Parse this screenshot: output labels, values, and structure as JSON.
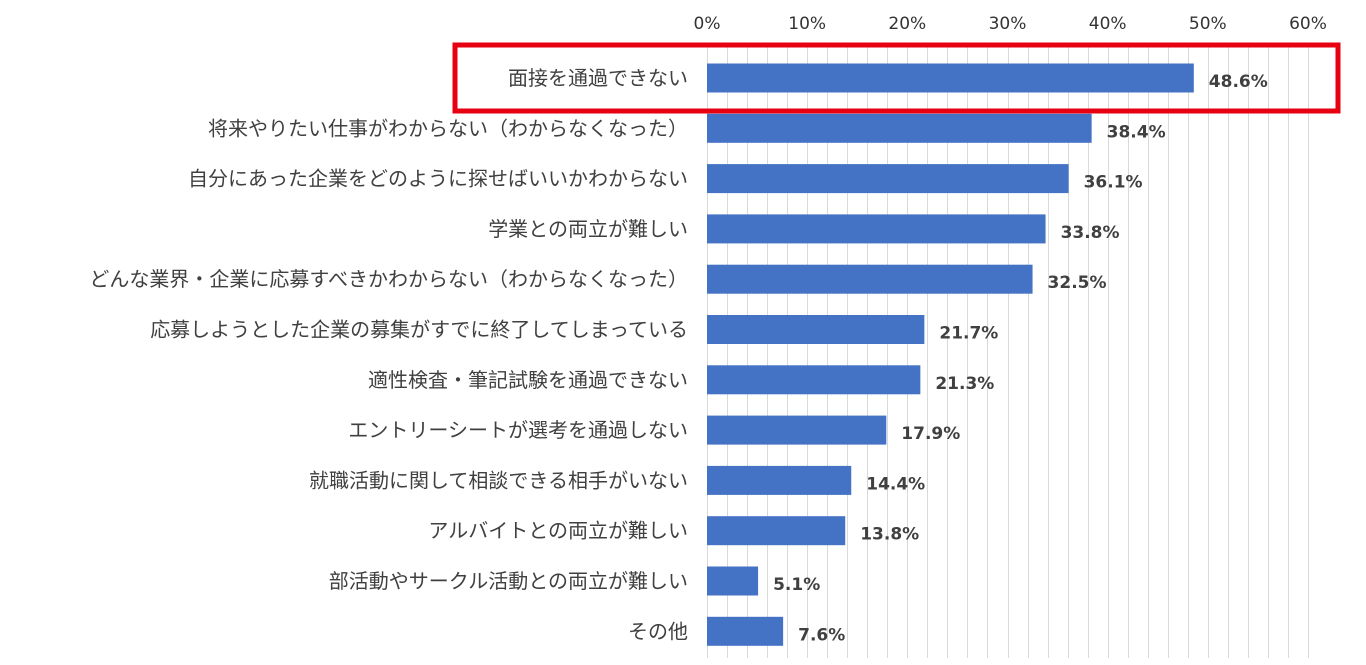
{
  "chart_data": {
    "type": "bar",
    "orientation": "horizontal",
    "categories": [
      "面接を通過できない",
      "将来やりたい仕事がわからない（わからなくなった）",
      "自分にあった企業をどのように探せばいいかわからない",
      "学業との両立が難しい",
      "どんな業界・企業に応募すべきかわからない（わからなくなった）",
      "応募しようとした企業の募集がすでに終了してしまっている",
      "適性検査・筆記試験を通過できない",
      "エントリーシートが選考を通過しない",
      "就職活動に関して相談できる相手がいない",
      "アルバイトとの両立が難しい",
      "部活動やサークル活動との両立が難しい",
      "その他"
    ],
    "values": [
      48.6,
      38.4,
      36.1,
      33.8,
      32.5,
      21.7,
      21.3,
      17.9,
      14.4,
      13.8,
      5.1,
      7.6
    ],
    "value_labels": [
      "48.6%",
      "38.4%",
      "36.1%",
      "33.8%",
      "32.5%",
      "21.7%",
      "21.3%",
      "17.9%",
      "14.4%",
      "13.8%",
      "5.1%",
      "7.6%"
    ],
    "xlim": [
      0,
      60
    ],
    "x_ticks": [
      0,
      10,
      20,
      30,
      40,
      50,
      60
    ],
    "x_tick_labels": [
      "0%",
      "10%",
      "20%",
      "30%",
      "40%",
      "50%",
      "60%"
    ],
    "x_axis_position": "top",
    "grid": true,
    "bar_color": "#4472C4",
    "grid_color": "#D9D9D9",
    "highlight": {
      "category_index": 0,
      "color": "#E60012"
    },
    "title": "",
    "xlabel": "",
    "ylabel": ""
  }
}
